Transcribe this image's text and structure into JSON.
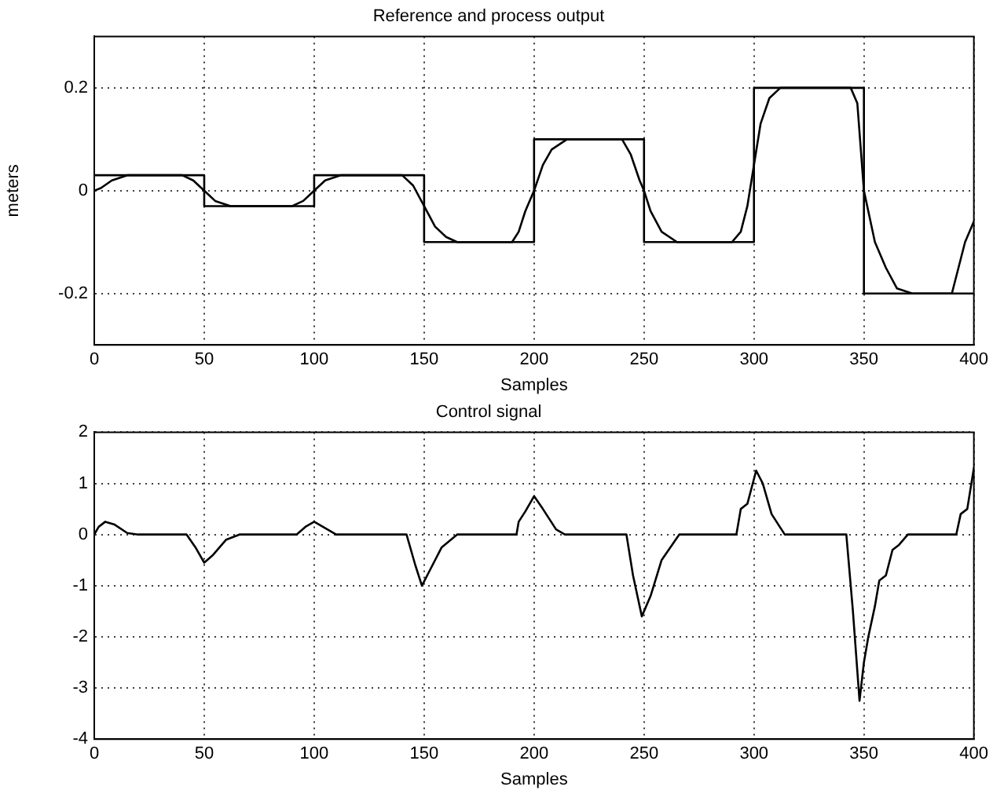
{
  "chart_data": [
    {
      "type": "line",
      "title": "Reference and process output",
      "xlabel": "Samples",
      "ylabel": "meters",
      "xlim": [
        0,
        400
      ],
      "xticks": [
        0,
        50,
        100,
        150,
        200,
        250,
        300,
        350,
        400
      ],
      "ylim": [
        -0.3,
        0.3
      ],
      "yticks": [
        -0.2,
        0,
        0.2
      ],
      "grid": true,
      "legend": false,
      "marker": "none",
      "line_style": "solid",
      "series": [
        {
          "type": "step",
          "color": "#000000",
          "x": [
            0,
            50,
            100,
            150,
            200,
            250,
            300,
            350,
            400
          ],
          "values": [
            0.03,
            -0.03,
            0.03,
            -0.1,
            0.1,
            -0.1,
            0.2,
            -0.2,
            -0.2
          ]
        },
        {
          "type": "line",
          "color": "#000000",
          "x": [
            0,
            3,
            8,
            15,
            40,
            45,
            50,
            55,
            62,
            70,
            90,
            95,
            100,
            105,
            112,
            120,
            140,
            145,
            150,
            155,
            160,
            165,
            172,
            190,
            193,
            196,
            200,
            204,
            208,
            215,
            240,
            244,
            248,
            250,
            253,
            258,
            265,
            290,
            294,
            297,
            300,
            303,
            307,
            312,
            340,
            344,
            347,
            350,
            355,
            360,
            365,
            372,
            390,
            393,
            396,
            400
          ],
          "values": [
            0,
            0.005,
            0.02,
            0.03,
            0.03,
            0.02,
            0,
            -0.02,
            -0.03,
            -0.03,
            -0.03,
            -0.02,
            0,
            0.02,
            0.03,
            0.03,
            0.03,
            0.01,
            -0.03,
            -0.07,
            -0.09,
            -0.1,
            -0.1,
            -0.1,
            -0.08,
            -0.04,
            0,
            0.05,
            0.08,
            0.1,
            0.1,
            0.07,
            0.02,
            0,
            -0.04,
            -0.08,
            -0.1,
            -0.1,
            -0.08,
            -0.03,
            0.05,
            0.13,
            0.18,
            0.2,
            0.2,
            0.2,
            0.17,
            0,
            -0.1,
            -0.15,
            -0.19,
            -0.2,
            -0.2,
            -0.15,
            -0.1,
            -0.06
          ]
        }
      ]
    },
    {
      "type": "line",
      "title": "Control signal",
      "xlabel": "Samples",
      "xlim": [
        0,
        400
      ],
      "xticks": [
        0,
        50,
        100,
        150,
        200,
        250,
        300,
        350,
        400
      ],
      "ylim": [
        -4,
        2
      ],
      "yticks": [
        -4,
        -3,
        -2,
        -1,
        0,
        1,
        2
      ],
      "grid": true,
      "legend": false,
      "marker": "none",
      "line_style": "solid",
      "series": [
        {
          "type": "line",
          "color": "#000000",
          "x": [
            0,
            2,
            5,
            9,
            15,
            20,
            42,
            46,
            50,
            54,
            60,
            66,
            92,
            96,
            100,
            104,
            110,
            142,
            146,
            149,
            152,
            158,
            165,
            192,
            193,
            196,
            200,
            204,
            210,
            214,
            242,
            245,
            249,
            253,
            258,
            266,
            292,
            294,
            297,
            301,
            304,
            308,
            314,
            342,
            345,
            348,
            350,
            352,
            355,
            357,
            360,
            363,
            366,
            370,
            392,
            394,
            397,
            400
          ],
          "values": [
            0,
            0.15,
            0.25,
            0.2,
            0.03,
            0,
            0,
            -0.25,
            -0.55,
            -0.4,
            -0.1,
            0,
            0,
            0.15,
            0.25,
            0.15,
            0,
            0,
            -0.6,
            -1,
            -0.75,
            -0.25,
            0,
            0,
            0.25,
            0.45,
            0.75,
            0.5,
            0.1,
            0,
            0,
            -0.8,
            -1.6,
            -1.2,
            -0.5,
            0,
            0,
            0.5,
            0.6,
            1.25,
            1,
            0.4,
            0,
            0,
            -1.5,
            -3.25,
            -2.5,
            -2,
            -1.4,
            -0.9,
            -0.8,
            -0.3,
            -0.2,
            0,
            0,
            0.4,
            0.5,
            1.3
          ]
        }
      ]
    }
  ]
}
